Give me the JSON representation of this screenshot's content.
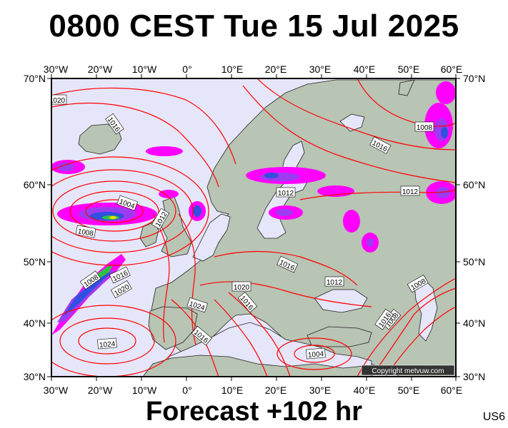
{
  "header": {
    "title": "0800 CEST Tue 15 Jul 2025"
  },
  "footer": {
    "forecast": "Forecast +102 hr",
    "run_code": "US6"
  },
  "credit": "Copyright metvuw.com",
  "axes": {
    "top_lon": [
      "30°W",
      "20°W",
      "10°W",
      "0°",
      "10°E",
      "20°E",
      "30°E",
      "40°E",
      "50°E",
      "60°E"
    ],
    "bottom_lon": [
      "30°W",
      "20°W",
      "10°W",
      "0°",
      "10°E",
      "20°E",
      "30°E",
      "40°E",
      "50°E",
      "60°E"
    ],
    "left_lat": [
      "70°N",
      "60°N",
      "50°N",
      "40°N",
      "30°N"
    ],
    "right_lat": [
      "70°N",
      "60°N",
      "50°N",
      "40°N",
      "30°N"
    ]
  },
  "isobar_labels": [
    "1020",
    "1016",
    "1016",
    "1016",
    "1012",
    "1012",
    "1004",
    "1012",
    "1008",
    "1016",
    "1008",
    "1016",
    "1020",
    "1020",
    "1012",
    "1024",
    "1016",
    "1008",
    "1008",
    "1024",
    "1016",
    "1004",
    "1008"
  ],
  "colors": {
    "sea": "#e6e6fa",
    "land": "#b8c4b4",
    "isobar": "#ff0000",
    "rain_magenta": "#ff00ff",
    "rain_purple": "#9c3cf0",
    "rain_blue": "#3050e0"
  }
}
